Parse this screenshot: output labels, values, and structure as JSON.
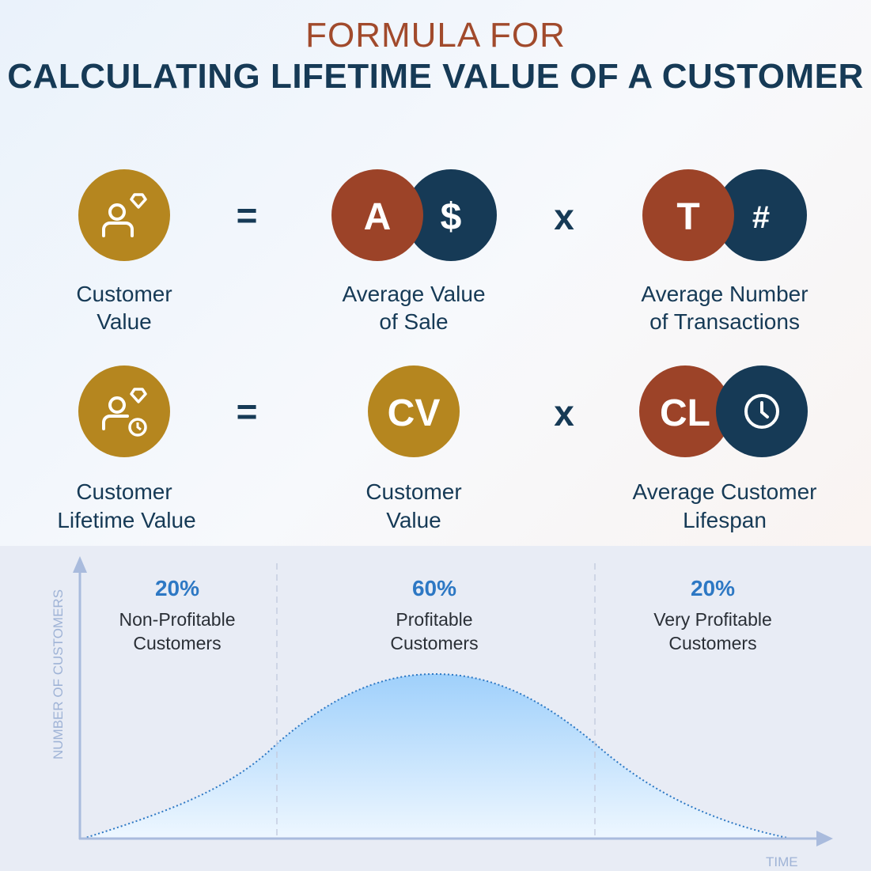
{
  "title": {
    "line1": "FORMULA FOR",
    "line2": "CALCULATING LIFETIME VALUE OF A CUSTOMER"
  },
  "colors": {
    "gold": "#B5861F",
    "rust": "#9C4328",
    "navy": "#163A56",
    "accent_blue": "#2D78C4"
  },
  "row1": {
    "result": {
      "icon": "user-diamond-icon",
      "label_line1": "Customer",
      "label_line2": "Value"
    },
    "operator_eq": "=",
    "term1": {
      "letter": "A",
      "symbol": "$",
      "label_line1": "Average Value",
      "label_line2": "of Sale"
    },
    "operator_mul": "x",
    "term2": {
      "letter": "T",
      "symbol": "#",
      "label_line1": "Average Number",
      "label_line2": "of Transactions"
    }
  },
  "row2": {
    "result": {
      "icon": "user-diamond-clock-icon",
      "label_line1": "Customer",
      "label_line2": "Lifetime Value"
    },
    "operator_eq": "=",
    "term1": {
      "letter": "CV",
      "label_line1": "Customer",
      "label_line2": "Value"
    },
    "operator_mul": "x",
    "term2": {
      "letter": "CL",
      "icon": "clock-icon",
      "label_line1": "Average Customer",
      "label_line2": "Lifespan"
    }
  },
  "distribution": {
    "y_axis_label": "NUMBER OF CUSTOMERS",
    "x_axis_label": "TIME",
    "segments": [
      {
        "percent": "20%",
        "line1": "Non-Profitable",
        "line2": "Customers"
      },
      {
        "percent": "60%",
        "line1": "Profitable",
        "line2": "Customers"
      },
      {
        "percent": "20%",
        "line1": "Very Profitable",
        "line2": "Customers"
      }
    ]
  }
}
